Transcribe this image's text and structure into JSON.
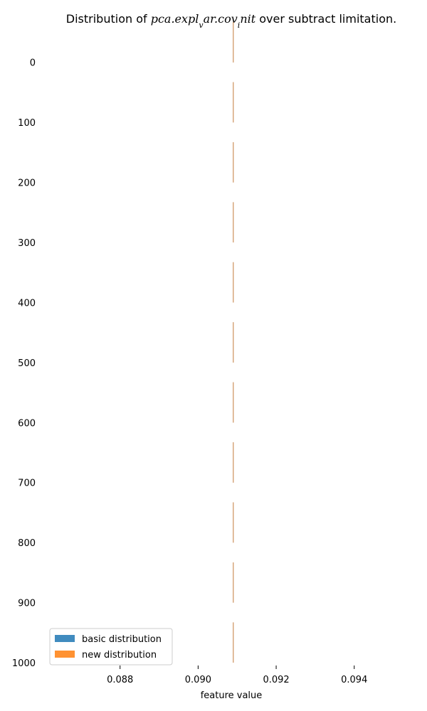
{
  "chart_data": {
    "type": "area",
    "title": {
      "prefix": "Distribution of ",
      "math_a": "pca.expl",
      "math_sub1": "v",
      "math_b": "ar.cov",
      "math_sub2": "i",
      "math_c": "nit",
      "suffix": " over subtract limitation."
    },
    "xlabel": "feature value",
    "ylabel": "",
    "xlim": [
      0.0862,
      0.0955
    ],
    "ylim": [
      1000,
      -66
    ],
    "x_ticks": [
      0.088,
      0.09,
      0.092,
      0.094
    ],
    "x_tick_labels": [
      "0.088",
      "0.090",
      "0.092",
      "0.094"
    ],
    "y_ticks": [
      0,
      100,
      200,
      300,
      400,
      500,
      600,
      700,
      800,
      900,
      1000
    ],
    "y_tick_labels": [
      "0",
      "100",
      "200",
      "300",
      "400",
      "500",
      "600",
      "700",
      "800",
      "900",
      "1000"
    ],
    "grid": false,
    "legend_position": "lower-left",
    "series": [
      {
        "name": "basic distribution",
        "color": "#1f77b4"
      },
      {
        "name": "new distribution",
        "color": "#ff7f0e"
      }
    ],
    "ridges": [
      {
        "y": 0,
        "x": 0.0909
      },
      {
        "y": 100,
        "x": 0.0909
      },
      {
        "y": 200,
        "x": 0.0909
      },
      {
        "y": 300,
        "x": 0.0909
      },
      {
        "y": 400,
        "x": 0.0909
      },
      {
        "y": 500,
        "x": 0.0909
      },
      {
        "y": 600,
        "x": 0.0909
      },
      {
        "y": 700,
        "x": 0.0909
      },
      {
        "y": 800,
        "x": 0.0909
      },
      {
        "y": 900,
        "x": 0.0909
      },
      {
        "y": 1000,
        "x": 0.0909
      }
    ],
    "ridge_height": 67,
    "overlap_color": "#d8a77c"
  }
}
